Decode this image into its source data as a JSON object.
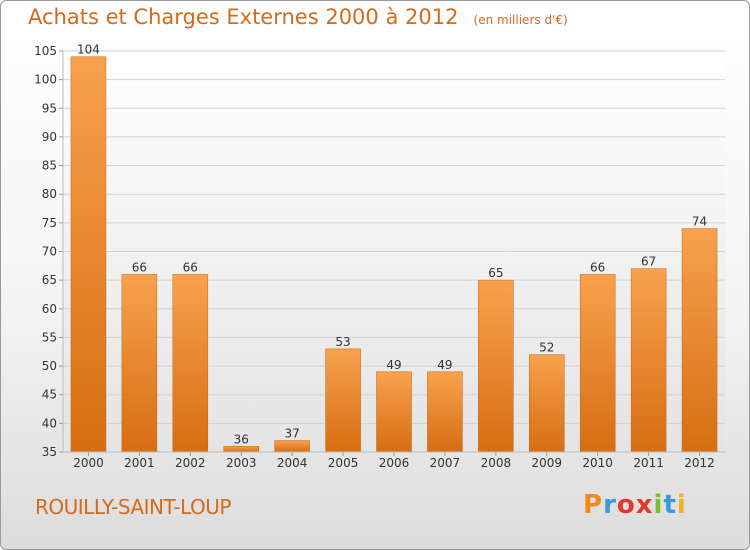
{
  "header": {
    "title": "Achats et Charges Externes 2000 à 2012",
    "subtitle": "(en milliers d'€)"
  },
  "footer": {
    "city": "ROUILLY-SAINT-LOUP",
    "logo_letters": [
      "P",
      "r",
      "o",
      "x",
      "i",
      "t",
      "i"
    ],
    "logo_colors": [
      "#f08a1c",
      "#3a9ad9",
      "#e23a2a",
      "#e23a2a",
      "#7bbf2a",
      "#3a9ad9",
      "#f0b21c"
    ]
  },
  "chart_data": {
    "type": "bar",
    "title": "Achats et Charges Externes 2000 à 2012",
    "subtitle": "(en milliers d'€)",
    "categories": [
      "2000",
      "2001",
      "2002",
      "2003",
      "2004",
      "2005",
      "2006",
      "2007",
      "2008",
      "2009",
      "2010",
      "2011",
      "2012"
    ],
    "values": [
      104,
      66,
      66,
      36,
      37,
      53,
      49,
      49,
      65,
      52,
      66,
      67,
      74
    ],
    "ylim": [
      35,
      105
    ],
    "yticks": [
      35,
      40,
      45,
      50,
      55,
      60,
      65,
      70,
      75,
      80,
      85,
      90,
      95,
      100,
      105
    ],
    "grid": true,
    "bar_color_top": "#f7a24e",
    "bar_color_bottom": "#d76d12"
  }
}
